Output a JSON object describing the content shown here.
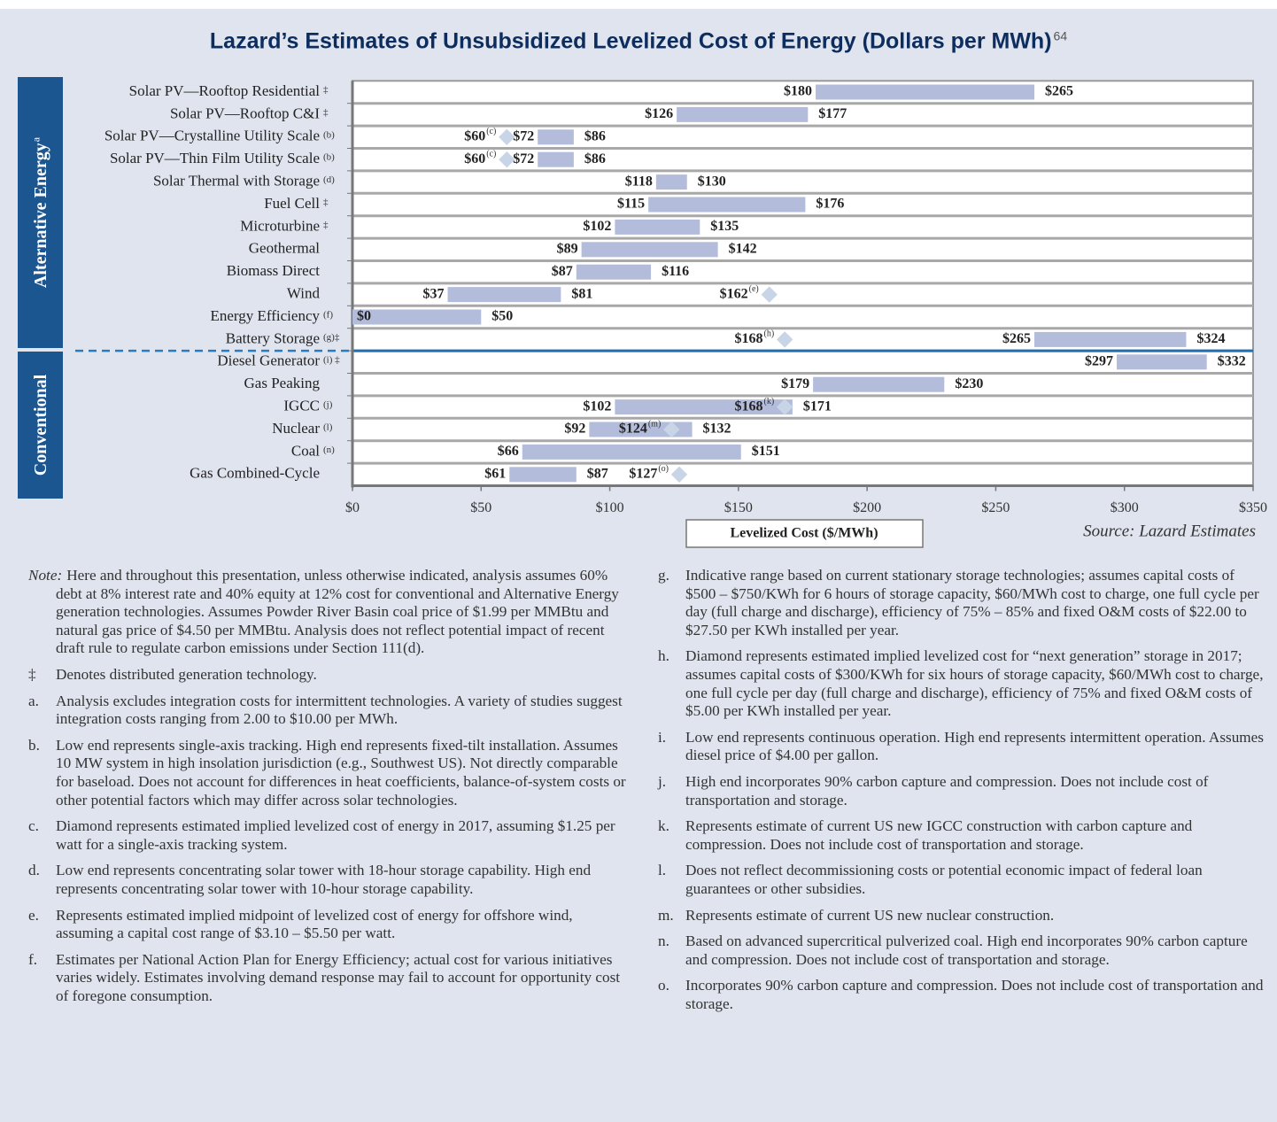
{
  "chart_data": {
    "type": "range_bar",
    "title": "Lazard’s Estimates of Unsubsidized Levelized Cost of Energy (Dollars per MWh)",
    "title_note": "64",
    "groups": [
      {
        "label": "Alternative Energy",
        "note": "a"
      },
      {
        "label": "Conventional"
      }
    ],
    "categories": [
      "Solar PV—Rooftop Residential",
      "Solar PV—Rooftop C&I",
      "Solar PV—Crystalline Utility Scale",
      "Solar PV—Thin Film Utility Scale",
      "Solar Thermal with Storage",
      "Fuel Cell",
      "Microturbine",
      "Geothermal",
      "Biomass Direct",
      "Wind",
      "Energy Efficiency",
      "Battery Storage",
      "Diesel Generator",
      "Gas Peaking",
      "IGCC",
      "Nuclear",
      "Coal",
      "Gas Combined-Cycle"
    ],
    "category_notes": [
      "‡",
      "‡",
      "(b)",
      "(b)",
      "(d)",
      "‡",
      "‡",
      null,
      null,
      null,
      "(f)",
      "(g)‡",
      "(i) ‡",
      null,
      "(j)",
      "(l)",
      "(n)",
      null
    ],
    "low": [
      180,
      126,
      72,
      72,
      118,
      115,
      102,
      89,
      87,
      37,
      0,
      265,
      297,
      179,
      102,
      92,
      66,
      61
    ],
    "low_labels": [
      "$180",
      "$126",
      "$72",
      "$72",
      "$118",
      "$115",
      "$102",
      "$89",
      "$87",
      "$37",
      "$0",
      "$265",
      "$297",
      "$179",
      "$102",
      "$92",
      "$66",
      "$61"
    ],
    "high": [
      265,
      177,
      86,
      86,
      130,
      176,
      135,
      142,
      116,
      81,
      50,
      324,
      332,
      230,
      171,
      132,
      151,
      87
    ],
    "high_labels": [
      "$265",
      "$177",
      "$86",
      "$86",
      "$130",
      "$176",
      "$135",
      "$142",
      "$116",
      "$81",
      "$50",
      "$324",
      "$332",
      "$230",
      "$171",
      "$132",
      "$151",
      "$87"
    ],
    "diamond": [
      null,
      null,
      60,
      60,
      null,
      null,
      null,
      null,
      null,
      162,
      null,
      168,
      null,
      null,
      168,
      124,
      null,
      127
    ],
    "diamond_labels": [
      null,
      null,
      "$60",
      "$60",
      null,
      null,
      null,
      null,
      null,
      "$162",
      null,
      "$168",
      null,
      null,
      "$168",
      "$124",
      null,
      "$127"
    ],
    "diamond_notes": [
      null,
      null,
      "(c)",
      "(c)",
      null,
      null,
      null,
      null,
      null,
      "(e)",
      null,
      "(h)",
      null,
      null,
      "(k)",
      "(m)",
      null,
      "(o)"
    ],
    "color": "#b3bddb",
    "diamond_color": "#c8d5e6",
    "xlim": [
      0,
      350
    ],
    "xticks": [
      {
        "value": 0,
        "label": "$0"
      },
      {
        "value": 50,
        "label": "$50"
      },
      {
        "value": 100,
        "label": "$100"
      },
      {
        "value": 150,
        "label": "$150"
      },
      {
        "value": 200,
        "label": "$200"
      },
      {
        "value": 250,
        "label": "$250"
      },
      {
        "value": 300,
        "label": "$300"
      },
      {
        "value": 350,
        "label": "$350"
      }
    ],
    "xlabel": "Levelized Cost ($/MWh)",
    "source": "Source: Lazard Estimates"
  },
  "notes": {
    "left": [
      {
        "marker": "Note:",
        "text": "Here and throughout this presentation, unless otherwise indicated, analysis assumes 60% debt at 8% interest rate and 40% equity at 12% cost for conventional and Alternative Energy generation technologies. Assumes Powder River Basin coal price of $1.99 per MMBtu and natural gas price of $4.50 per MMBtu. Analysis does not reflect potential impact of recent draft rule to regulate carbon emissions under Section 111(d)."
      },
      {
        "marker": "‡",
        "text": "Denotes distributed generation technology."
      },
      {
        "marker": "a.",
        "text": "Analysis excludes integration costs for intermittent technologies. A variety of studies suggest integration costs ranging from 2.00 to $10.00 per MWh."
      },
      {
        "marker": "b.",
        "text": "Low end represents single-axis tracking. High end represents fixed-tilt installation. Assumes 10 MW system in high insolation jurisdiction (e.g., Southwest US). Not directly comparable for baseload. Does not account for differences in heat coefficients, balance-of-system costs or other potential factors which may differ across solar technologies."
      },
      {
        "marker": "c.",
        "text": "Diamond represents estimated implied levelized cost of energy in 2017, assuming $1.25 per watt for a single-axis tracking system."
      },
      {
        "marker": "d.",
        "text": "Low end represents concentrating solar tower with 18-hour storage capability. High end represents concentrating solar tower with 10-hour storage capability."
      },
      {
        "marker": "e.",
        "text": "Represents estimated implied midpoint of levelized cost of energy for offshore wind, assuming a capital cost range of $3.10 – $5.50 per watt."
      },
      {
        "marker": "f.",
        "text": "Estimates per National Action Plan for Energy Efficiency; actual cost for various initiatives varies widely. Estimates involving demand response may fail to account for opportunity cost of foregone consumption."
      }
    ],
    "right": [
      {
        "marker": "g.",
        "text": "Indicative range based on current stationary storage technologies; assumes capital costs of $500 – $750/KWh for 6 hours of storage capacity, $60/MWh cost to charge, one full cycle per day (full charge and discharge), efficiency of 75% – 85% and fixed O&M costs of $22.00 to $27.50 per KWh installed per year."
      },
      {
        "marker": "h.",
        "text": "Diamond represents estimated implied levelized cost for “next generation” storage in 2017; assumes capital costs of $300/KWh for six hours of storage capacity, $60/MWh cost to charge, one full cycle per day (full charge and discharge), efficiency of 75% and fixed O&M costs of $5.00 per KWh installed per year."
      },
      {
        "marker": "i.",
        "text": "Low end represents continuous operation. High end represents intermittent operation. Assumes diesel price of $4.00 per gallon."
      },
      {
        "marker": "j.",
        "text": "High end incorporates 90% carbon capture and compression. Does not include cost of transportation and storage."
      },
      {
        "marker": "k.",
        "text": "Represents estimate of current US new IGCC construction with carbon capture and compression. Does not include cost of transportation and storage."
      },
      {
        "marker": "l.",
        "text": "Does not reflect decommissioning costs or potential economic impact of federal loan guarantees or other subsidies."
      },
      {
        "marker": "m.",
        "text": "Represents estimate of current US new nuclear construction."
      },
      {
        "marker": "n.",
        "text": "Based on advanced supercritical pulverized coal. High end incorporates 90% carbon capture and compression. Does not include cost of transportation and storage."
      },
      {
        "marker": "o.",
        "text": "Incorporates 90% carbon capture and compression. Does not include cost of transportation and storage."
      }
    ]
  }
}
